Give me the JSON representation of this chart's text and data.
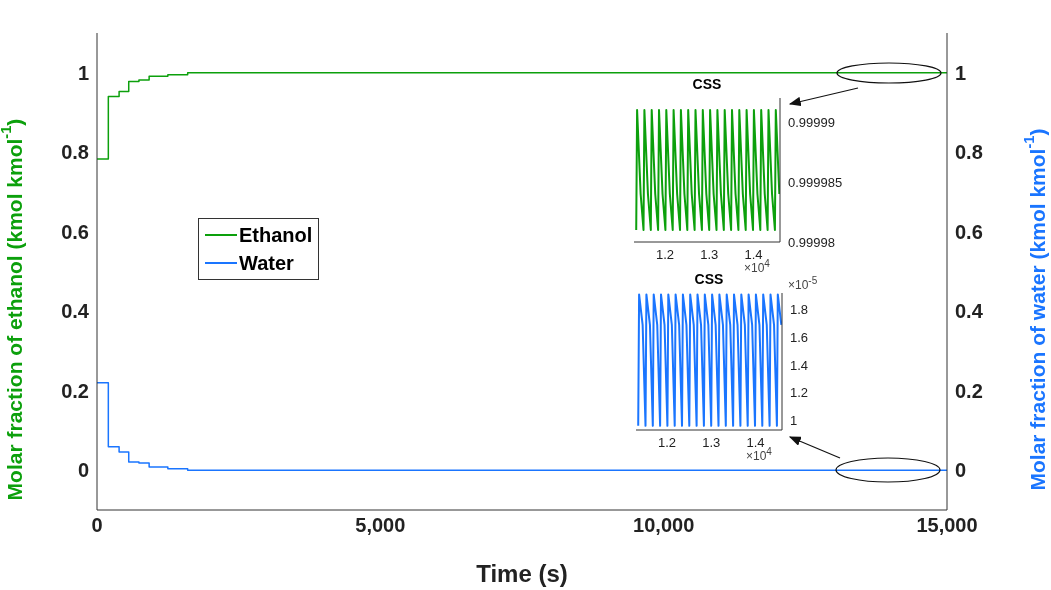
{
  "chart_data": [
    {
      "type": "step",
      "xlabel": "Time (s)",
      "ylabel": "Molar fraction of ethanol (kmol kmol$^{-1}$)",
      "y2label": "Molar fraction of water (kmol kmol$^{-1}$)",
      "xlim": [
        0,
        15000
      ],
      "xticks": [
        0,
        {
          "value": 5000,
          "label": "5,000"
        },
        {
          "value": 10000,
          "label": "10,000"
        },
        {
          "value": 15000,
          "label": "15,000"
        }
      ],
      "ylim": [
        -0.1,
        1.1
      ],
      "yticks": [
        0,
        0.2,
        0.4,
        0.6,
        0.8,
        1
      ],
      "y2lim": [
        -0.1,
        1.1
      ],
      "y2ticks": [
        0,
        0.2,
        0.4,
        0.6,
        0.8,
        1
      ],
      "legend": "left",
      "grid": false,
      "series": [
        {
          "name": "Ethanol",
          "color": "#0ca00c",
          "x": [
            0,
            200,
            390,
            560,
            740,
            920,
            1250,
            1600,
            15000
          ],
          "values": [
            0.783,
            0.94,
            0.953,
            0.978,
            0.982,
            0.991,
            0.995,
            1,
            1
          ]
        },
        {
          "name": "Water",
          "color": "#1a75ff",
          "axis": "y2",
          "x": [
            0,
            200,
            390,
            560,
            740,
            920,
            1250,
            1600,
            15000
          ],
          "values": [
            0.22,
            0.059,
            0.046,
            0.021,
            0.018,
            0.008,
            0.004,
            0,
            0
          ]
        }
      ]
    },
    {
      "type": "line",
      "title": "CSS",
      "xlim": [
        1.13,
        1.46
      ],
      "xticks": [
        1.2,
        1.3,
        1.4
      ],
      "ylim": [
        0.99998,
        0.999992
      ],
      "yticks": [
        0.99998,
        0.999985,
        0.99999
      ],
      "annotations": [
        "×10$^{4}$"
      ],
      "grid": false,
      "x": [
        1.135,
        1.137,
        1.145,
        1.1515,
        1.1535,
        1.1615,
        1.168,
        1.17,
        1.178,
        1.1845,
        1.1865,
        1.1945,
        1.201,
        1.203,
        1.211,
        1.2175,
        1.2195,
        1.2275,
        1.234,
        1.236,
        1.244,
        1.2505,
        1.2525,
        1.2605,
        1.267,
        1.269,
        1.277,
        1.2835,
        1.2855,
        1.2935,
        1.3,
        1.302,
        1.31,
        1.3165,
        1.3185,
        1.3265,
        1.333,
        1.335,
        1.343,
        1.3495,
        1.3515,
        1.3595,
        1.366,
        1.368,
        1.376,
        1.3825,
        1.3845,
        1.3925,
        1.399,
        1.401,
        1.409,
        1.4155,
        1.4175,
        1.4255,
        1.432,
        1.434,
        1.442,
        1.4485,
        1.4505,
        1.4585
      ],
      "series": [
        {
          "color": "#0ca00c",
          "values": [
            0.999981,
            0.999991,
            0.999984,
            0.999981,
            0.999991,
            0.999984,
            0.999981,
            0.999991,
            0.999984,
            0.999981,
            0.999991,
            0.999984,
            0.999981,
            0.999991,
            0.999984,
            0.999981,
            0.999991,
            0.999984,
            0.999981,
            0.999991,
            0.999984,
            0.999981,
            0.999991,
            0.999984,
            0.999981,
            0.999991,
            0.999984,
            0.999981,
            0.999991,
            0.999984,
            0.999981,
            0.999991,
            0.999984,
            0.999981,
            0.999991,
            0.999984,
            0.999981,
            0.999991,
            0.999984,
            0.999981,
            0.999991,
            0.999984,
            0.999981,
            0.999991,
            0.999984,
            0.999981,
            0.999991,
            0.999984,
            0.999981,
            0.999991,
            0.999984,
            0.999981,
            0.999991,
            0.999984,
            0.999981,
            0.999991,
            0.999984,
            0.999981,
            0.999991,
            0.999984
          ]
        }
      ]
    },
    {
      "type": "line",
      "title": "CSS",
      "xlim": [
        1.13,
        1.46
      ],
      "xticks": [
        1.2,
        1.3,
        1.4
      ],
      "ylim": [
        0.93,
        1.92
      ],
      "yticks": [
        1,
        1.2,
        1.4,
        1.6,
        1.8
      ],
      "annotations": [
        "×10$^{4}$",
        "×10$^{-5}$"
      ],
      "grid": false,
      "x": [
        1.135,
        1.137,
        1.145,
        1.1515,
        1.1535,
        1.1615,
        1.168,
        1.17,
        1.178,
        1.1845,
        1.1865,
        1.1945,
        1.201,
        1.203,
        1.211,
        1.2175,
        1.2195,
        1.2275,
        1.234,
        1.236,
        1.244,
        1.2505,
        1.2525,
        1.2605,
        1.267,
        1.269,
        1.277,
        1.2835,
        1.2855,
        1.2935,
        1.3,
        1.302,
        1.31,
        1.3165,
        1.3185,
        1.3265,
        1.333,
        1.335,
        1.343,
        1.3495,
        1.3515,
        1.3595,
        1.366,
        1.368,
        1.376,
        1.3825,
        1.3845,
        1.3925,
        1.399,
        1.401,
        1.409,
        1.4155,
        1.4175,
        1.4255,
        1.432,
        1.434,
        1.442,
        1.4485,
        1.4505,
        1.4585
      ],
      "series": [
        {
          "color": "#1a75ff",
          "values": [
            0.96,
            1.91,
            1.69,
            0.96,
            1.91,
            1.69,
            0.96,
            1.91,
            1.69,
            0.96,
            1.91,
            1.69,
            0.96,
            1.91,
            1.69,
            0.96,
            1.91,
            1.69,
            0.96,
            1.91,
            1.69,
            0.96,
            1.91,
            1.69,
            0.96,
            1.91,
            1.69,
            0.96,
            1.91,
            1.69,
            0.96,
            1.91,
            1.69,
            0.96,
            1.91,
            1.69,
            0.96,
            1.91,
            1.69,
            0.96,
            1.91,
            1.69,
            0.96,
            1.91,
            1.69,
            0.96,
            1.91,
            1.69,
            0.96,
            1.91,
            1.69,
            0.96,
            1.91,
            1.69,
            0.96,
            1.91,
            1.69,
            0.96,
            1.91,
            1.69
          ]
        }
      ]
    }
  ]
}
